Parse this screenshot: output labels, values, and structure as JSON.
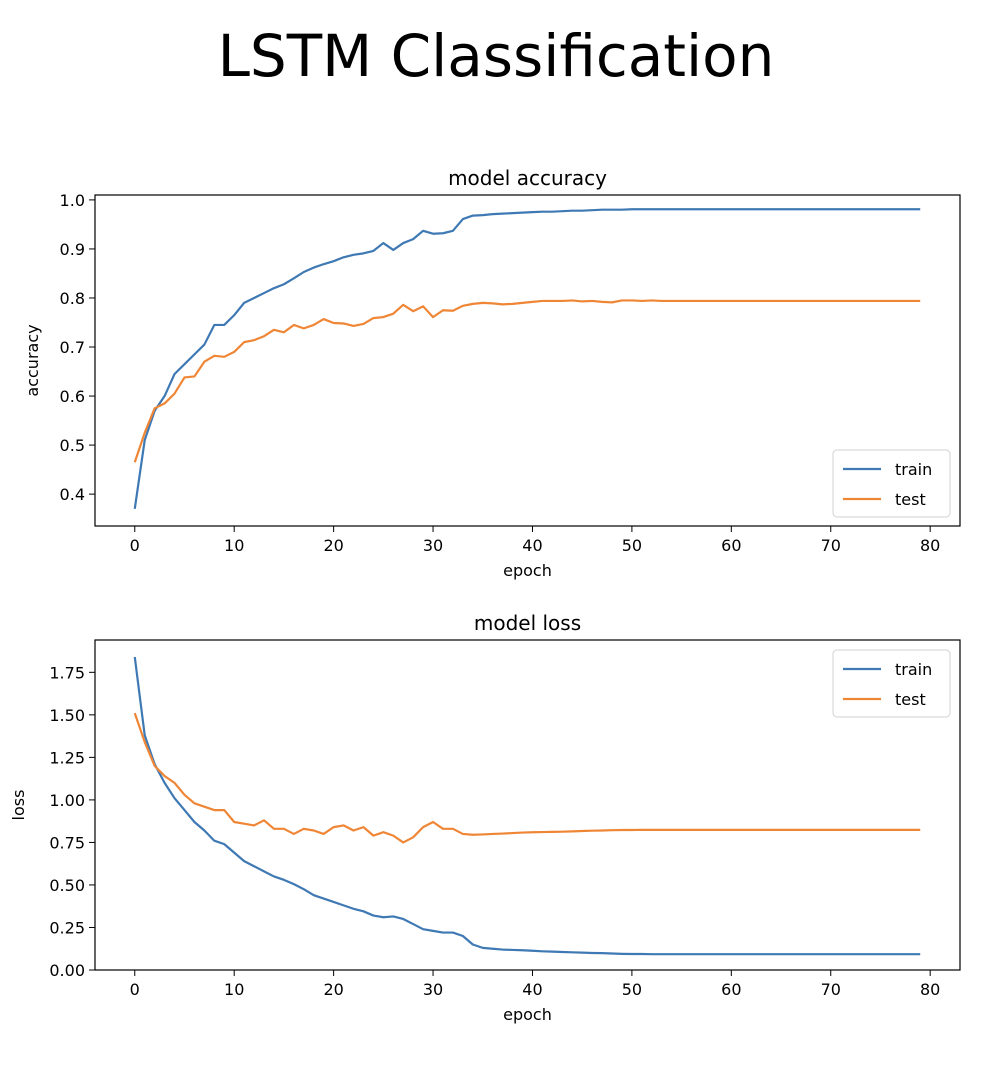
{
  "figure": {
    "title": "LSTM Classification"
  },
  "chart_data": [
    {
      "type": "line",
      "title": "model accuracy",
      "xlabel": "epoch",
      "ylabel": "accuracy",
      "xlim": [
        -4,
        83
      ],
      "ylim": [
        0.335,
        1.01
      ],
      "xticks": [
        0,
        10,
        20,
        30,
        40,
        50,
        60,
        70,
        80
      ],
      "xtick_labels": [
        "0",
        "10",
        "20",
        "30",
        "40",
        "50",
        "60",
        "70",
        "80"
      ],
      "yticks": [
        0.4,
        0.5,
        0.6,
        0.7,
        0.8,
        0.9,
        1.0
      ],
      "ytick_labels": [
        "0.4",
        "0.5",
        "0.6",
        "0.7",
        "0.8",
        "0.9",
        "1.0"
      ],
      "legend_position": "lower-right",
      "series": [
        {
          "name": "train",
          "color": "#3f79b4",
          "values": [
            0.37,
            0.51,
            0.57,
            0.6,
            0.645,
            0.665,
            0.685,
            0.705,
            0.745,
            0.745,
            0.765,
            0.79,
            0.8,
            0.81,
            0.82,
            0.828,
            0.84,
            0.853,
            0.862,
            0.869,
            0.875,
            0.883,
            0.888,
            0.891,
            0.896,
            0.912,
            0.898,
            0.912,
            0.92,
            0.937,
            0.931,
            0.932,
            0.937,
            0.961,
            0.968,
            0.969,
            0.971,
            0.972,
            0.973,
            0.974,
            0.975,
            0.976,
            0.976,
            0.977,
            0.978,
            0.978,
            0.979,
            0.98,
            0.98,
            0.98,
            0.981,
            0.981,
            0.981,
            0.981,
            0.981,
            0.981,
            0.981,
            0.981,
            0.981,
            0.981,
            0.981,
            0.981,
            0.981,
            0.981,
            0.981,
            0.981,
            0.981,
            0.981,
            0.981,
            0.981,
            0.981,
            0.981,
            0.981,
            0.981,
            0.981,
            0.981,
            0.981,
            0.981,
            0.981,
            0.981
          ]
        },
        {
          "name": "test",
          "color": "#ef8636",
          "values": [
            0.465,
            0.525,
            0.575,
            0.585,
            0.605,
            0.638,
            0.64,
            0.67,
            0.682,
            0.68,
            0.69,
            0.71,
            0.714,
            0.722,
            0.735,
            0.73,
            0.745,
            0.738,
            0.745,
            0.757,
            0.749,
            0.748,
            0.743,
            0.747,
            0.759,
            0.761,
            0.768,
            0.786,
            0.773,
            0.783,
            0.761,
            0.775,
            0.774,
            0.784,
            0.788,
            0.79,
            0.789,
            0.787,
            0.788,
            0.79,
            0.792,
            0.794,
            0.794,
            0.794,
            0.795,
            0.793,
            0.794,
            0.792,
            0.791,
            0.795,
            0.795,
            0.794,
            0.795,
            0.794,
            0.794,
            0.794,
            0.794,
            0.794,
            0.794,
            0.794,
            0.794,
            0.794,
            0.794,
            0.794,
            0.794,
            0.794,
            0.794,
            0.794,
            0.794,
            0.794,
            0.794,
            0.794,
            0.794,
            0.794,
            0.794,
            0.794,
            0.794,
            0.794,
            0.794,
            0.794
          ]
        }
      ]
    },
    {
      "type": "line",
      "title": "model loss",
      "xlabel": "epoch",
      "ylabel": "loss",
      "xlim": [
        -4,
        83
      ],
      "ylim": [
        0.0,
        1.94
      ],
      "xticks": [
        0,
        10,
        20,
        30,
        40,
        50,
        60,
        70,
        80
      ],
      "xtick_labels": [
        "0",
        "10",
        "20",
        "30",
        "40",
        "50",
        "60",
        "70",
        "80"
      ],
      "yticks": [
        0.0,
        0.25,
        0.5,
        0.75,
        1.0,
        1.25,
        1.5,
        1.75
      ],
      "ytick_labels": [
        "0.00",
        "0.25",
        "0.50",
        "0.75",
        "1.00",
        "1.25",
        "1.50",
        "1.75"
      ],
      "legend_position": "upper-right",
      "series": [
        {
          "name": "train",
          "color": "#3f79b4",
          "values": [
            1.84,
            1.38,
            1.21,
            1.1,
            1.01,
            0.94,
            0.87,
            0.82,
            0.76,
            0.74,
            0.69,
            0.64,
            0.61,
            0.58,
            0.55,
            0.53,
            0.505,
            0.475,
            0.44,
            0.42,
            0.4,
            0.38,
            0.36,
            0.345,
            0.32,
            0.31,
            0.315,
            0.3,
            0.27,
            0.24,
            0.23,
            0.22,
            0.22,
            0.2,
            0.15,
            0.13,
            0.125,
            0.12,
            0.118,
            0.116,
            0.113,
            0.11,
            0.108,
            0.106,
            0.104,
            0.102,
            0.1,
            0.099,
            0.097,
            0.095,
            0.094,
            0.094,
            0.093,
            0.093,
            0.093,
            0.093,
            0.093,
            0.093,
            0.093,
            0.093,
            0.093,
            0.093,
            0.093,
            0.093,
            0.093,
            0.093,
            0.093,
            0.093,
            0.093,
            0.093,
            0.093,
            0.093,
            0.093,
            0.093,
            0.093,
            0.093,
            0.093,
            0.093,
            0.093,
            0.093
          ]
        },
        {
          "name": "test",
          "color": "#ef8636",
          "values": [
            1.51,
            1.34,
            1.2,
            1.14,
            1.1,
            1.03,
            0.98,
            0.96,
            0.94,
            0.94,
            0.87,
            0.86,
            0.85,
            0.88,
            0.83,
            0.83,
            0.8,
            0.83,
            0.82,
            0.8,
            0.84,
            0.85,
            0.82,
            0.84,
            0.79,
            0.81,
            0.79,
            0.75,
            0.78,
            0.84,
            0.87,
            0.83,
            0.83,
            0.8,
            0.795,
            0.797,
            0.8,
            0.802,
            0.805,
            0.808,
            0.81,
            0.811,
            0.812,
            0.813,
            0.815,
            0.817,
            0.819,
            0.82,
            0.822,
            0.823,
            0.823,
            0.824,
            0.824,
            0.824,
            0.824,
            0.824,
            0.824,
            0.824,
            0.824,
            0.824,
            0.824,
            0.824,
            0.824,
            0.824,
            0.824,
            0.824,
            0.824,
            0.824,
            0.824,
            0.824,
            0.824,
            0.824,
            0.824,
            0.824,
            0.824,
            0.824,
            0.824,
            0.824,
            0.824,
            0.824
          ]
        }
      ]
    }
  ]
}
